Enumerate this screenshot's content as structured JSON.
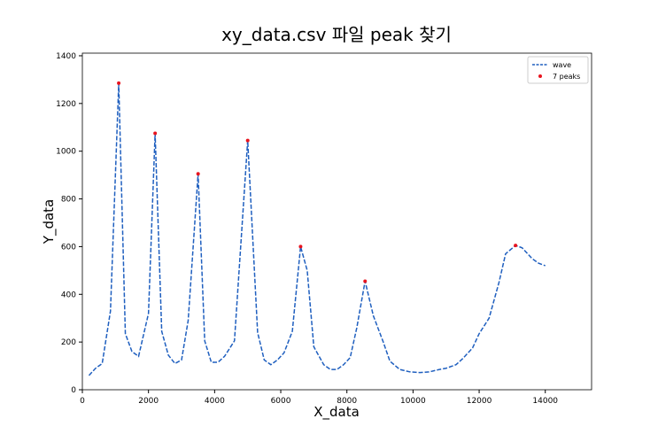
{
  "chart_data": {
    "type": "line",
    "title": "xy_data.csv 파일 peak 찾기",
    "xlabel": "X_data",
    "ylabel": "Y_data",
    "xlim": [
      0,
      15400
    ],
    "ylim": [
      0,
      1411
    ],
    "xticks": [
      0,
      2000,
      4000,
      6000,
      8000,
      10000,
      12000,
      14000
    ],
    "yticks": [
      0,
      200,
      400,
      600,
      800,
      1000,
      1200,
      1400
    ],
    "legend": "upper right",
    "series": [
      {
        "name": "wave",
        "color": "#1f5fbf",
        "style": "dashed",
        "x": [
          200,
          400,
          600,
          850,
          1100,
          1300,
          1500,
          1700,
          2000,
          2200,
          2400,
          2600,
          2800,
          3000,
          3200,
          3500,
          3700,
          3900,
          4100,
          4300,
          4600,
          5000,
          5300,
          5500,
          5700,
          5900,
          6100,
          6350,
          6600,
          6800,
          7000,
          7300,
          7500,
          7700,
          7900,
          8100,
          8300,
          8550,
          8800,
          9100,
          9300,
          9600,
          9900,
          10200,
          10500,
          10800,
          11000,
          11300,
          11500,
          11800,
          12000,
          12300,
          12600,
          12800,
          13100,
          13300,
          13600,
          13800,
          14000
        ],
        "values": [
          60,
          90,
          110,
          330,
          1285,
          235,
          160,
          140,
          320,
          1075,
          245,
          145,
          110,
          125,
          290,
          905,
          205,
          115,
          115,
          140,
          205,
          1045,
          240,
          125,
          105,
          125,
          155,
          245,
          600,
          500,
          180,
          105,
          85,
          85,
          105,
          135,
          260,
          455,
          310,
          200,
          120,
          85,
          75,
          72,
          75,
          85,
          90,
          105,
          130,
          175,
          235,
          300,
          450,
          570,
          605,
          595,
          550,
          530,
          520
        ]
      },
      {
        "name": "7 peaks",
        "color": "#e8141e",
        "style": "markers",
        "x": [
          1100,
          2200,
          3500,
          5000,
          6600,
          8550,
          13100
        ],
        "values": [
          1285,
          1075,
          905,
          1045,
          600,
          455,
          605
        ]
      }
    ]
  }
}
